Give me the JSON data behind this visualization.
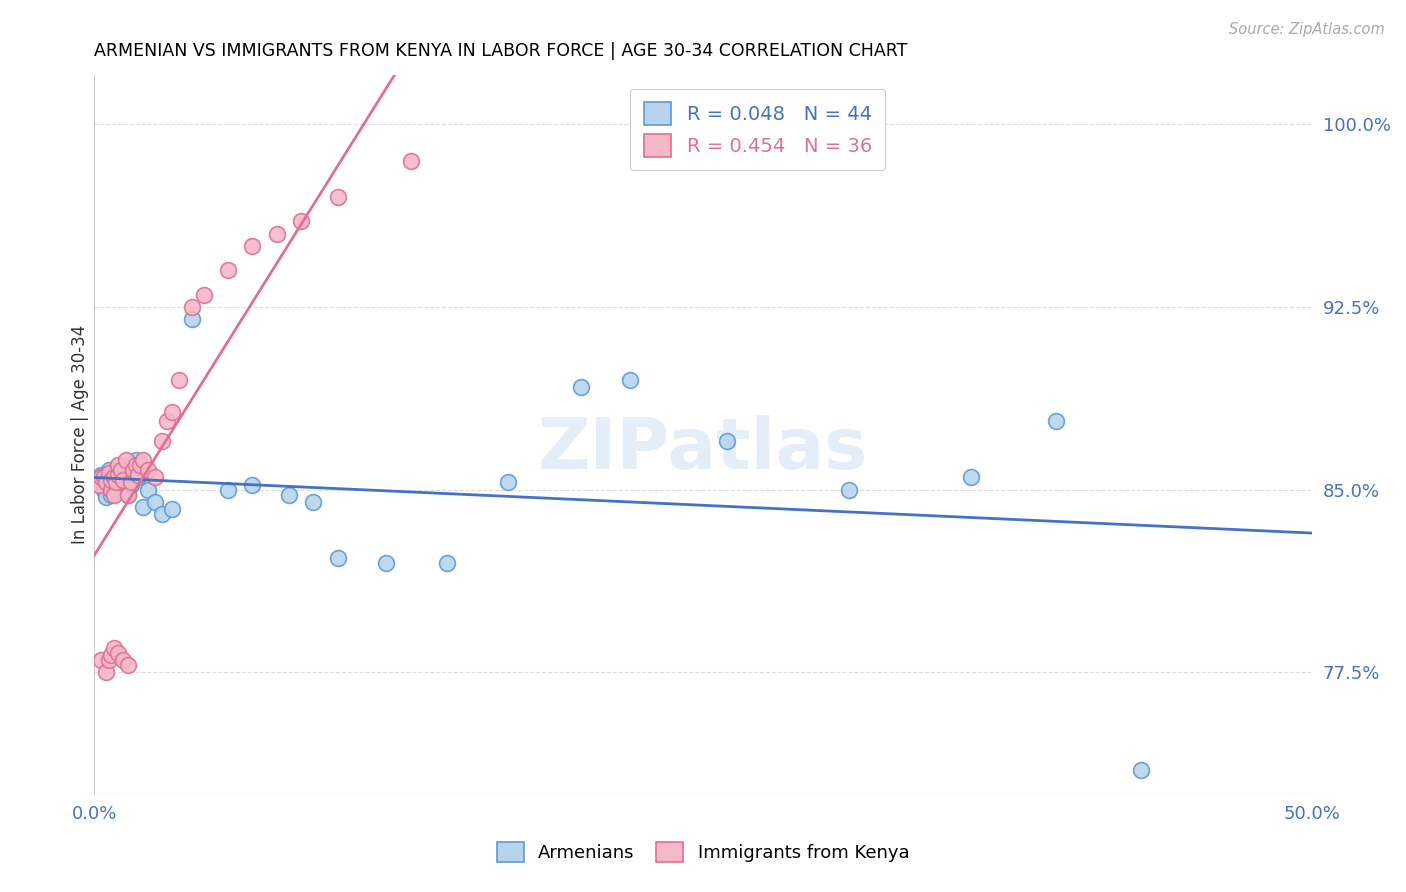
{
  "title": "ARMENIAN VS IMMIGRANTS FROM KENYA IN LABOR FORCE | AGE 30-34 CORRELATION CHART",
  "source": "Source: ZipAtlas.com",
  "ylabel": "In Labor Force | Age 30-34",
  "xlim": [
    0.0,
    0.5
  ],
  "ylim": [
    0.725,
    1.02
  ],
  "xtick_positions": [
    0.0,
    0.1,
    0.2,
    0.3,
    0.4,
    0.5
  ],
  "xtick_labels": [
    "0.0%",
    "",
    "",
    "",
    "",
    "50.0%"
  ],
  "ytick_positions": [
    0.775,
    0.85,
    0.925,
    1.0
  ],
  "ytick_labels": [
    "77.5%",
    "85.0%",
    "92.5%",
    "100.0%"
  ],
  "armenian_R": 0.048,
  "armenian_N": 44,
  "kenya_R": 0.454,
  "kenya_N": 36,
  "legend_armenian_label": "Armenians",
  "legend_kenya_label": "Immigrants from Kenya",
  "dot_color_armenian": "#b8d4ed",
  "dot_edge_color_armenian": "#5b9bd5",
  "dot_color_kenya": "#f4b8c8",
  "dot_edge_color_kenya": "#e07090",
  "line_color_armenian": "#4472c4",
  "line_color_kenya": "#e07090",
  "armenian_x": [
    0.002,
    0.003,
    0.003,
    0.004,
    0.005,
    0.005,
    0.006,
    0.006,
    0.007,
    0.007,
    0.008,
    0.008,
    0.009,
    0.01,
    0.01,
    0.011,
    0.012,
    0.013,
    0.014,
    0.015,
    0.016,
    0.017,
    0.018,
    0.02,
    0.022,
    0.025,
    0.028,
    0.032,
    0.04,
    0.055,
    0.065,
    0.08,
    0.09,
    0.1,
    0.12,
    0.145,
    0.17,
    0.2,
    0.22,
    0.26,
    0.31,
    0.36,
    0.395,
    0.43
  ],
  "armenian_y": [
    0.852,
    0.853,
    0.856,
    0.85,
    0.847,
    0.852,
    0.855,
    0.858,
    0.848,
    0.854,
    0.852,
    0.855,
    0.858,
    0.853,
    0.857,
    0.851,
    0.854,
    0.86,
    0.848,
    0.852,
    0.858,
    0.862,
    0.855,
    0.843,
    0.85,
    0.845,
    0.84,
    0.842,
    0.92,
    0.85,
    0.852,
    0.848,
    0.845,
    0.822,
    0.82,
    0.82,
    0.853,
    0.892,
    0.895,
    0.87,
    0.85,
    0.855,
    0.878,
    0.735
  ],
  "kenya_x": [
    0.002,
    0.003,
    0.004,
    0.005,
    0.006,
    0.007,
    0.007,
    0.008,
    0.008,
    0.009,
    0.01,
    0.01,
    0.011,
    0.012,
    0.013,
    0.014,
    0.015,
    0.016,
    0.017,
    0.018,
    0.019,
    0.02,
    0.022,
    0.025,
    0.028,
    0.03,
    0.032,
    0.035,
    0.04,
    0.045,
    0.055,
    0.065,
    0.075,
    0.085,
    0.1,
    0.13
  ],
  "kenya_y": [
    0.852,
    0.855,
    0.855,
    0.853,
    0.857,
    0.85,
    0.854,
    0.848,
    0.855,
    0.853,
    0.856,
    0.86,
    0.858,
    0.854,
    0.862,
    0.848,
    0.853,
    0.858,
    0.86,
    0.856,
    0.86,
    0.862,
    0.858,
    0.855,
    0.87,
    0.878,
    0.882,
    0.895,
    0.925,
    0.93,
    0.94,
    0.95,
    0.955,
    0.96,
    0.97,
    0.985
  ],
  "kenya_low_x": [
    0.003,
    0.005,
    0.006,
    0.007,
    0.008,
    0.01,
    0.012,
    0.014
  ],
  "kenya_low_y": [
    0.78,
    0.775,
    0.78,
    0.782,
    0.785,
    0.783,
    0.78,
    0.778
  ],
  "watermark_text": "ZIPatlas"
}
